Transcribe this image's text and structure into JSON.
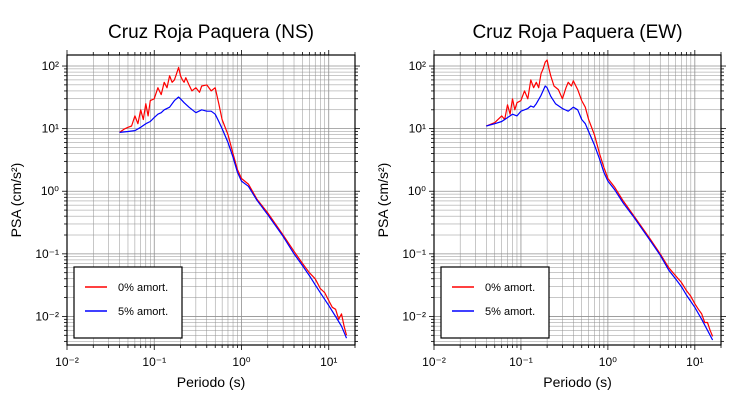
{
  "colors": {
    "undamped": "#ff0000",
    "damped": "#0000ff",
    "axis": "#000000",
    "grid": "#909090"
  },
  "chart_data": [
    {
      "type": "line",
      "title": "Cruz Roja Paquera (NS)",
      "xlabel": "Periodo (s)",
      "ylabel": "PSA (cm/s²)",
      "xscale": "log",
      "yscale": "log",
      "xlim": [
        0.01,
        20
      ],
      "ylim": [
        0.0035,
        150
      ],
      "x_tick_labels": [
        "10⁻²",
        "10⁻¹",
        "10⁰",
        "10¹"
      ],
      "y_tick_labels": [
        "10⁻²",
        "10⁻¹",
        "10⁰",
        "10¹",
        "10²"
      ],
      "grid": true,
      "legend_position": "bottom-left",
      "series": [
        {
          "name": "0% amort.",
          "color": "#ff0000",
          "points": [
            [
              0.04,
              8.7
            ],
            [
              0.045,
              9.8
            ],
            [
              0.05,
              10.5
            ],
            [
              0.055,
              11
            ],
            [
              0.06,
              16
            ],
            [
              0.065,
              12
            ],
            [
              0.07,
              20
            ],
            [
              0.075,
              14
            ],
            [
              0.08,
              25
            ],
            [
              0.085,
              16
            ],
            [
              0.09,
              28
            ],
            [
              0.1,
              30
            ],
            [
              0.11,
              45
            ],
            [
              0.12,
              35
            ],
            [
              0.13,
              55
            ],
            [
              0.14,
              45
            ],
            [
              0.15,
              70
            ],
            [
              0.16,
              55
            ],
            [
              0.17,
              60
            ],
            [
              0.18,
              75
            ],
            [
              0.19,
              95
            ],
            [
              0.2,
              70
            ],
            [
              0.21,
              60
            ],
            [
              0.22,
              55
            ],
            [
              0.23,
              65
            ],
            [
              0.25,
              50
            ],
            [
              0.27,
              40
            ],
            [
              0.3,
              45
            ],
            [
              0.33,
              38
            ],
            [
              0.35,
              48
            ],
            [
              0.4,
              50
            ],
            [
              0.45,
              40
            ],
            [
              0.5,
              45
            ],
            [
              0.55,
              25
            ],
            [
              0.6,
              14
            ],
            [
              0.7,
              8
            ],
            [
              0.8,
              4
            ],
            [
              0.9,
              2.2
            ],
            [
              1.0,
              1.6
            ],
            [
              1.2,
              1.3
            ],
            [
              1.5,
              0.75
            ],
            [
              2.0,
              0.45
            ],
            [
              3.0,
              0.2
            ],
            [
              4.0,
              0.11
            ],
            [
              5.0,
              0.07
            ],
            [
              6.0,
              0.05
            ],
            [
              7.0,
              0.04
            ],
            [
              8.0,
              0.028
            ],
            [
              9.0,
              0.024
            ],
            [
              10.0,
              0.018
            ],
            [
              11.0,
              0.014
            ],
            [
              12.0,
              0.013
            ],
            [
              13.0,
              0.009
            ],
            [
              14.0,
              0.011
            ],
            [
              15.0,
              0.007
            ],
            [
              16.0,
              0.005
            ]
          ]
        },
        {
          "name": "5% amort.",
          "color": "#0000ff",
          "points": [
            [
              0.04,
              8.7
            ],
            [
              0.05,
              9.0
            ],
            [
              0.06,
              9.3
            ],
            [
              0.07,
              10.5
            ],
            [
              0.08,
              12
            ],
            [
              0.09,
              13
            ],
            [
              0.1,
              15
            ],
            [
              0.11,
              17
            ],
            [
              0.12,
              18
            ],
            [
              0.13,
              20
            ],
            [
              0.15,
              22
            ],
            [
              0.17,
              28
            ],
            [
              0.19,
              32
            ],
            [
              0.2,
              30
            ],
            [
              0.22,
              26
            ],
            [
              0.25,
              22
            ],
            [
              0.3,
              18
            ],
            [
              0.35,
              20
            ],
            [
              0.4,
              19
            ],
            [
              0.45,
              19
            ],
            [
              0.5,
              17
            ],
            [
              0.55,
              13
            ],
            [
              0.6,
              10
            ],
            [
              0.7,
              6
            ],
            [
              0.8,
              3.5
            ],
            [
              0.9,
              2.0
            ],
            [
              1.0,
              1.45
            ],
            [
              1.2,
              1.2
            ],
            [
              1.5,
              0.72
            ],
            [
              2.0,
              0.42
            ],
            [
              3.0,
              0.19
            ],
            [
              4.0,
              0.1
            ],
            [
              5.0,
              0.065
            ],
            [
              6.0,
              0.045
            ],
            [
              7.0,
              0.032
            ],
            [
              8.0,
              0.024
            ],
            [
              10.0,
              0.015
            ],
            [
              12.0,
              0.01
            ],
            [
              14.0,
              0.007
            ],
            [
              16.0,
              0.0045
            ]
          ]
        }
      ]
    },
    {
      "type": "line",
      "title": "Cruz Roja Paquera (EW)",
      "xlabel": "Periodo (s)",
      "ylabel": "PSA (cm/s²)",
      "xscale": "log",
      "yscale": "log",
      "xlim": [
        0.01,
        20
      ],
      "ylim": [
        0.0035,
        150
      ],
      "x_tick_labels": [
        "10⁻²",
        "10⁻¹",
        "10⁰",
        "10¹"
      ],
      "y_tick_labels": [
        "10⁻²",
        "10⁻¹",
        "10⁰",
        "10¹",
        "10²"
      ],
      "grid": true,
      "legend_position": "bottom-left",
      "series": [
        {
          "name": "0% amort.",
          "color": "#ff0000",
          "points": [
            [
              0.04,
              11
            ],
            [
              0.05,
              12.5
            ],
            [
              0.06,
              16
            ],
            [
              0.065,
              14
            ],
            [
              0.07,
              24
            ],
            [
              0.075,
              17
            ],
            [
              0.08,
              30
            ],
            [
              0.085,
              20
            ],
            [
              0.09,
              26
            ],
            [
              0.1,
              28
            ],
            [
              0.11,
              40
            ],
            [
              0.12,
              30
            ],
            [
              0.13,
              60
            ],
            [
              0.14,
              45
            ],
            [
              0.15,
              55
            ],
            [
              0.16,
              45
            ],
            [
              0.17,
              75
            ],
            [
              0.18,
              90
            ],
            [
              0.19,
              115
            ],
            [
              0.2,
              125
            ],
            [
              0.21,
              90
            ],
            [
              0.22,
              70
            ],
            [
              0.24,
              48
            ],
            [
              0.27,
              42
            ],
            [
              0.3,
              30
            ],
            [
              0.33,
              45
            ],
            [
              0.35,
              55
            ],
            [
              0.38,
              48
            ],
            [
              0.4,
              58
            ],
            [
              0.45,
              42
            ],
            [
              0.5,
              28
            ],
            [
              0.55,
              22
            ],
            [
              0.6,
              14
            ],
            [
              0.7,
              8
            ],
            [
              0.8,
              4.0
            ],
            [
              0.9,
              2.4
            ],
            [
              1.0,
              1.6
            ],
            [
              1.2,
              1.15
            ],
            [
              1.5,
              0.7
            ],
            [
              2.0,
              0.4
            ],
            [
              3.0,
              0.18
            ],
            [
              4.0,
              0.1
            ],
            [
              5.0,
              0.06
            ],
            [
              6.0,
              0.045
            ],
            [
              7.0,
              0.035
            ],
            [
              8.0,
              0.026
            ],
            [
              9.0,
              0.021
            ],
            [
              10.0,
              0.016
            ],
            [
              11.0,
              0.013
            ],
            [
              12.0,
              0.011
            ],
            [
              13.0,
              0.008
            ],
            [
              14.0,
              0.008
            ],
            [
              15.0,
              0.006
            ],
            [
              16.0,
              0.0048
            ]
          ]
        },
        {
          "name": "5% amort.",
          "color": "#0000ff",
          "points": [
            [
              0.04,
              11
            ],
            [
              0.05,
              12
            ],
            [
              0.06,
              13
            ],
            [
              0.07,
              15
            ],
            [
              0.08,
              17
            ],
            [
              0.09,
              16
            ],
            [
              0.1,
              19
            ],
            [
              0.11,
              20
            ],
            [
              0.12,
              21
            ],
            [
              0.13,
              23
            ],
            [
              0.14,
              22
            ],
            [
              0.15,
              25
            ],
            [
              0.17,
              34
            ],
            [
              0.19,
              48
            ],
            [
              0.2,
              45
            ],
            [
              0.22,
              33
            ],
            [
              0.25,
              25
            ],
            [
              0.3,
              21
            ],
            [
              0.35,
              19
            ],
            [
              0.4,
              22
            ],
            [
              0.45,
              20
            ],
            [
              0.5,
              14
            ],
            [
              0.55,
              12
            ],
            [
              0.6,
              9
            ],
            [
              0.7,
              5.5
            ],
            [
              0.8,
              3.3
            ],
            [
              0.9,
              2.0
            ],
            [
              1.0,
              1.45
            ],
            [
              1.2,
              1.05
            ],
            [
              1.5,
              0.65
            ],
            [
              2.0,
              0.38
            ],
            [
              3.0,
              0.17
            ],
            [
              4.0,
              0.095
            ],
            [
              5.0,
              0.055
            ],
            [
              6.0,
              0.04
            ],
            [
              7.0,
              0.03
            ],
            [
              8.0,
              0.022
            ],
            [
              10.0,
              0.014
            ],
            [
              12.0,
              0.009
            ],
            [
              14.0,
              0.006
            ],
            [
              16.0,
              0.0042
            ]
          ]
        }
      ]
    }
  ]
}
